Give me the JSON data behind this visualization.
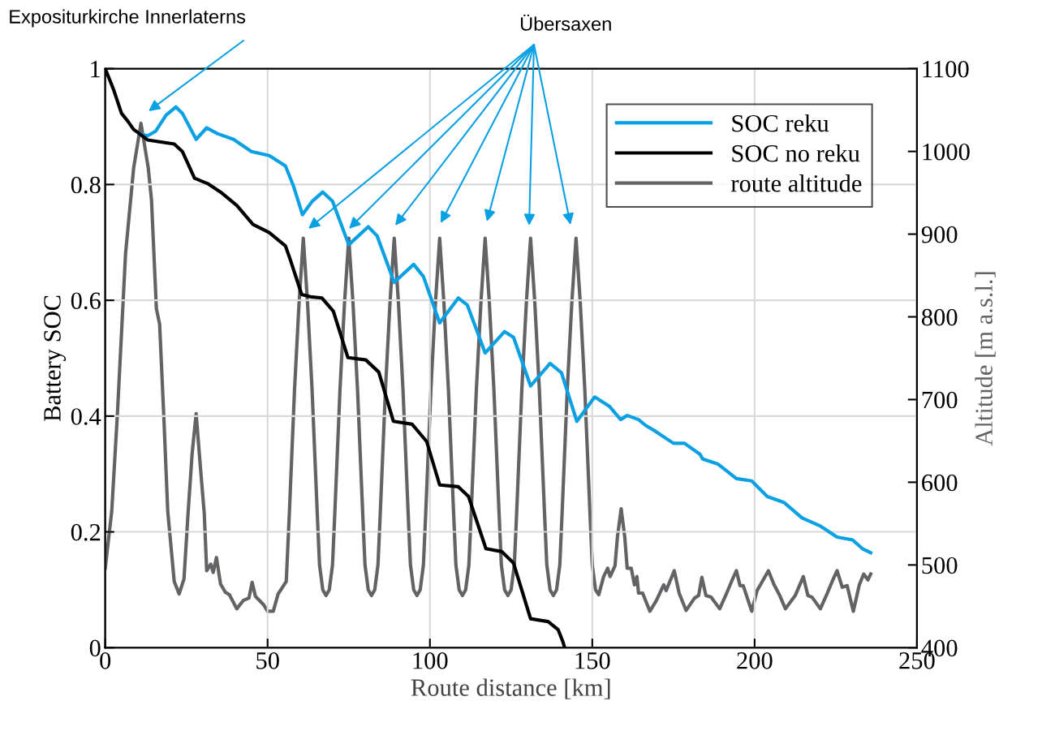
{
  "chart_data": {
    "type": "line",
    "xlabel": "Route distance [km]",
    "ylabel": "Battery SOC",
    "y2label": "Altitude [m a.s.l.]",
    "xlim": [
      0,
      250
    ],
    "xticks": [
      0,
      50,
      100,
      150,
      200,
      250
    ],
    "ylim": [
      0,
      1
    ],
    "yticks": [
      0,
      0.2,
      0.4,
      0.6,
      0.8,
      1
    ],
    "y2lim": [
      400,
      1100
    ],
    "y2ticks": [
      400,
      500,
      600,
      700,
      800,
      900,
      1000,
      1100
    ],
    "grid": true,
    "legend": "top right",
    "line_style": "solid",
    "marker": "none",
    "series": [
      {
        "name": "SOC reku",
        "color": "#0aa0e4",
        "x": [
          10.5,
          13,
          15.5,
          18.75,
          21.75,
          23.75,
          28,
          31.25,
          34.5,
          39.5,
          45,
          50.5,
          55.5,
          58,
          60.75,
          63.75,
          67,
          70,
          71.75,
          75,
          81,
          83.75,
          89,
          95,
          98,
          103,
          108.75,
          111.5,
          117,
          123,
          125.75,
          131,
          137,
          140.5,
          145.25,
          150.75,
          155.25,
          158.75,
          160.75,
          164.25,
          166.4,
          169.4,
          175,
          178.4,
          183.2,
          184,
          188.75,
          194.4,
          199.1,
          203.9,
          209,
          214.6,
          220.25,
          225.4,
          230.2,
          233.2,
          235.75
        ],
        "values": [
          0.888,
          0.884,
          0.892,
          0.92,
          0.934,
          0.923,
          0.878,
          0.898,
          0.888,
          0.878,
          0.857,
          0.85,
          0.832,
          0.797,
          0.748,
          0.771,
          0.787,
          0.771,
          0.745,
          0.696,
          0.727,
          0.711,
          0.631,
          0.662,
          0.641,
          0.561,
          0.604,
          0.592,
          0.509,
          0.546,
          0.536,
          0.452,
          0.491,
          0.475,
          0.391,
          0.433,
          0.417,
          0.394,
          0.401,
          0.394,
          0.384,
          0.374,
          0.353,
          0.353,
          0.334,
          0.326,
          0.317,
          0.292,
          0.288,
          0.261,
          0.251,
          0.224,
          0.21,
          0.191,
          0.186,
          0.171,
          0.164
        ]
      },
      {
        "name": "SOC no reku",
        "color": "#000000",
        "x": [
          0,
          2.5,
          5,
          7,
          8.75,
          10.5,
          13,
          21.25,
          23.75,
          27.5,
          31.75,
          35.5,
          40.5,
          45.5,
          50.5,
          55.5,
          57,
          60.5,
          63.25,
          66.75,
          70.25,
          74.75,
          80.25,
          84.25,
          88.75,
          94.5,
          99,
          103,
          108.75,
          111.9,
          117.25,
          122.1,
          125.75,
          131,
          136.4,
          139.5,
          140.9,
          141.5
        ],
        "values": [
          1.0,
          0.965,
          0.923,
          0.909,
          0.895,
          0.888,
          0.877,
          0.87,
          0.857,
          0.811,
          0.801,
          0.787,
          0.764,
          0.731,
          0.717,
          0.694,
          0.67,
          0.61,
          0.606,
          0.604,
          0.581,
          0.501,
          0.497,
          0.476,
          0.391,
          0.386,
          0.356,
          0.281,
          0.278,
          0.261,
          0.171,
          0.166,
          0.146,
          0.05,
          0.045,
          0.031,
          0.011,
          0
        ]
      },
      {
        "name": "route altitude",
        "color": "#636366",
        "axis": "y2",
        "x": [
          0,
          2,
          3.75,
          6.25,
          8.75,
          11,
          13.25,
          14.25,
          15.75,
          16.75,
          18,
          19.25,
          21.25,
          22.75,
          24.25,
          25.5,
          26.75,
          28,
          29.25,
          30.5,
          31.25,
          32.5,
          33.25,
          34.25,
          35.5,
          37,
          38.25,
          40.5,
          42.5,
          44.25,
          45.25,
          46.25,
          48.75,
          50,
          51.75,
          53.25,
          55.75,
          56.7,
          58.3,
          59.7,
          61,
          62.3,
          63.7,
          65.3,
          66,
          67,
          68,
          69,
          70,
          70.7,
          72.3,
          73.7,
          75,
          76.3,
          77.7,
          79.3,
          80,
          81,
          82,
          83,
          84,
          84.7,
          86.3,
          87.7,
          89,
          90.3,
          91.7,
          93.3,
          94,
          95,
          96,
          97,
          98,
          98.7,
          100.3,
          101.7,
          103,
          104.3,
          105.7,
          107.3,
          108,
          109,
          110,
          111,
          112,
          112.7,
          114.3,
          115.7,
          117,
          118.3,
          119.7,
          121.3,
          122,
          123,
          124,
          125,
          126,
          126.7,
          128.3,
          129.7,
          131,
          132.3,
          133.7,
          135.3,
          136,
          137,
          138,
          139,
          140,
          140.7,
          142.3,
          143.7,
          145,
          146.3,
          147.7,
          149.3,
          150,
          151,
          152,
          153.5,
          154.75,
          155.5,
          157,
          157.75,
          158.9,
          160,
          160.75,
          162,
          163,
          163.75,
          164.25,
          165.5,
          167.75,
          169.75,
          172,
          172.75,
          175.25,
          176.75,
          178.9,
          181.5,
          182.75,
          183.75,
          185,
          186.6,
          189.25,
          191.4,
          193,
          194.4,
          195.5,
          196.5,
          199.1,
          200.75,
          202.5,
          204.25,
          206,
          207.75,
          209.5,
          212.5,
          215,
          216.4,
          217.7,
          220.25,
          222.4,
          224.1,
          225.4,
          227,
          228.5,
          230.4,
          232.25,
          233.6,
          234.9,
          235.75
        ],
        "values": [
          496,
          565,
          683,
          876,
          980,
          1034,
          980,
          941,
          810,
          791,
          683,
          565,
          480,
          465,
          483,
          562,
          634,
          683,
          621,
          562,
          493,
          501,
          491,
          509,
          477,
          467,
          464,
          447,
          457,
          460,
          479,
          462,
          452,
          444,
          444,
          465,
          480,
          562,
          712,
          817,
          895,
          817,
          712,
          562,
          500,
          470,
          463,
          470,
          500,
          562,
          712,
          817,
          895,
          817,
          712,
          562,
          500,
          470,
          463,
          470,
          500,
          562,
          712,
          817,
          895,
          817,
          712,
          562,
          500,
          470,
          463,
          470,
          500,
          562,
          712,
          817,
          895,
          817,
          712,
          562,
          500,
          470,
          463,
          470,
          500,
          562,
          712,
          817,
          895,
          817,
          712,
          562,
          500,
          470,
          463,
          470,
          500,
          562,
          712,
          817,
          895,
          817,
          712,
          562,
          500,
          470,
          463,
          470,
          500,
          562,
          712,
          817,
          895,
          817,
          712,
          562,
          500,
          470,
          464,
          486,
          496,
          486,
          499,
          534,
          568,
          534,
          496,
          496,
          476,
          486,
          466,
          466,
          444,
          457,
          476,
          469,
          493,
          466,
          445,
          460,
          463,
          485,
          463,
          461,
          447,
          466,
          481,
          493,
          475,
          475,
          444,
          469,
          481,
          493,
          476,
          463,
          447,
          463,
          486,
          463,
          461,
          447,
          466,
          482,
          493,
          473,
          475,
          444,
          476,
          489,
          482,
          489
        ]
      }
    ],
    "annotations": [
      "Expositurkirche Innerlaterns",
      "Übersaxen"
    ]
  }
}
